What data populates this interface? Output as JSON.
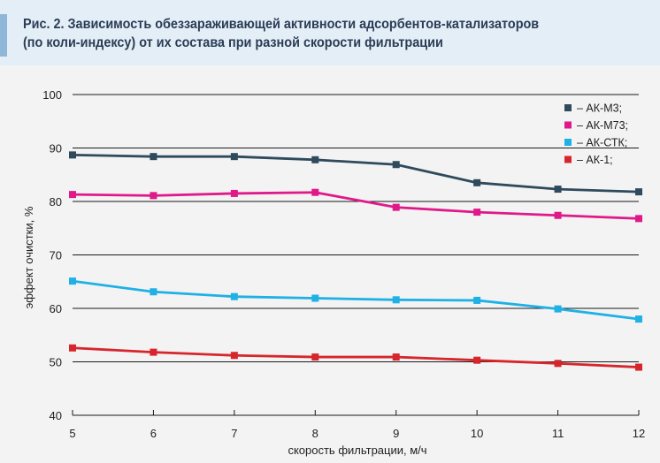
{
  "figure": {
    "title_line1": "Рис. 2. Зависимость обеззараживающей активности адсорбентов-катализаторов",
    "title_line2": "(по коли-индексу) от их состава при разной скорости фильтрации"
  },
  "chart_data": {
    "type": "line",
    "title": "Рис. 2. Зависимость обеззараживающей активности адсорбентов-катализаторов (по коли-индексу) от их состава при разной скорости фильтрации",
    "xlabel": "скорость фильтрации, м/ч",
    "ylabel": "эффект очистки, %",
    "x": [
      5,
      6,
      7,
      8,
      9,
      10,
      11,
      12
    ],
    "xlim": [
      5,
      12
    ],
    "ylim": [
      40,
      100
    ],
    "yticks": [
      40,
      50,
      60,
      70,
      80,
      90,
      100
    ],
    "grid": true,
    "legend_position": "top-right",
    "series": [
      {
        "name": "– АК-М3;",
        "color": "#2e4a5c",
        "values": [
          88.7,
          88.4,
          88.4,
          87.8,
          86.9,
          83.5,
          82.3,
          81.8
        ]
      },
      {
        "name": "– АК-М73;",
        "color": "#e0198a",
        "values": [
          81.3,
          81.1,
          81.5,
          81.7,
          78.9,
          78.0,
          77.4,
          76.8
        ]
      },
      {
        "name": "– АК-СТК;",
        "color": "#1fb0e6",
        "values": [
          65.1,
          63.1,
          62.2,
          61.9,
          61.6,
          61.5,
          59.9,
          58.0
        ]
      },
      {
        "name": "– АК-1;",
        "color": "#d6262c",
        "values": [
          52.6,
          51.8,
          51.2,
          50.9,
          50.9,
          50.3,
          49.7,
          49.0
        ]
      }
    ]
  }
}
